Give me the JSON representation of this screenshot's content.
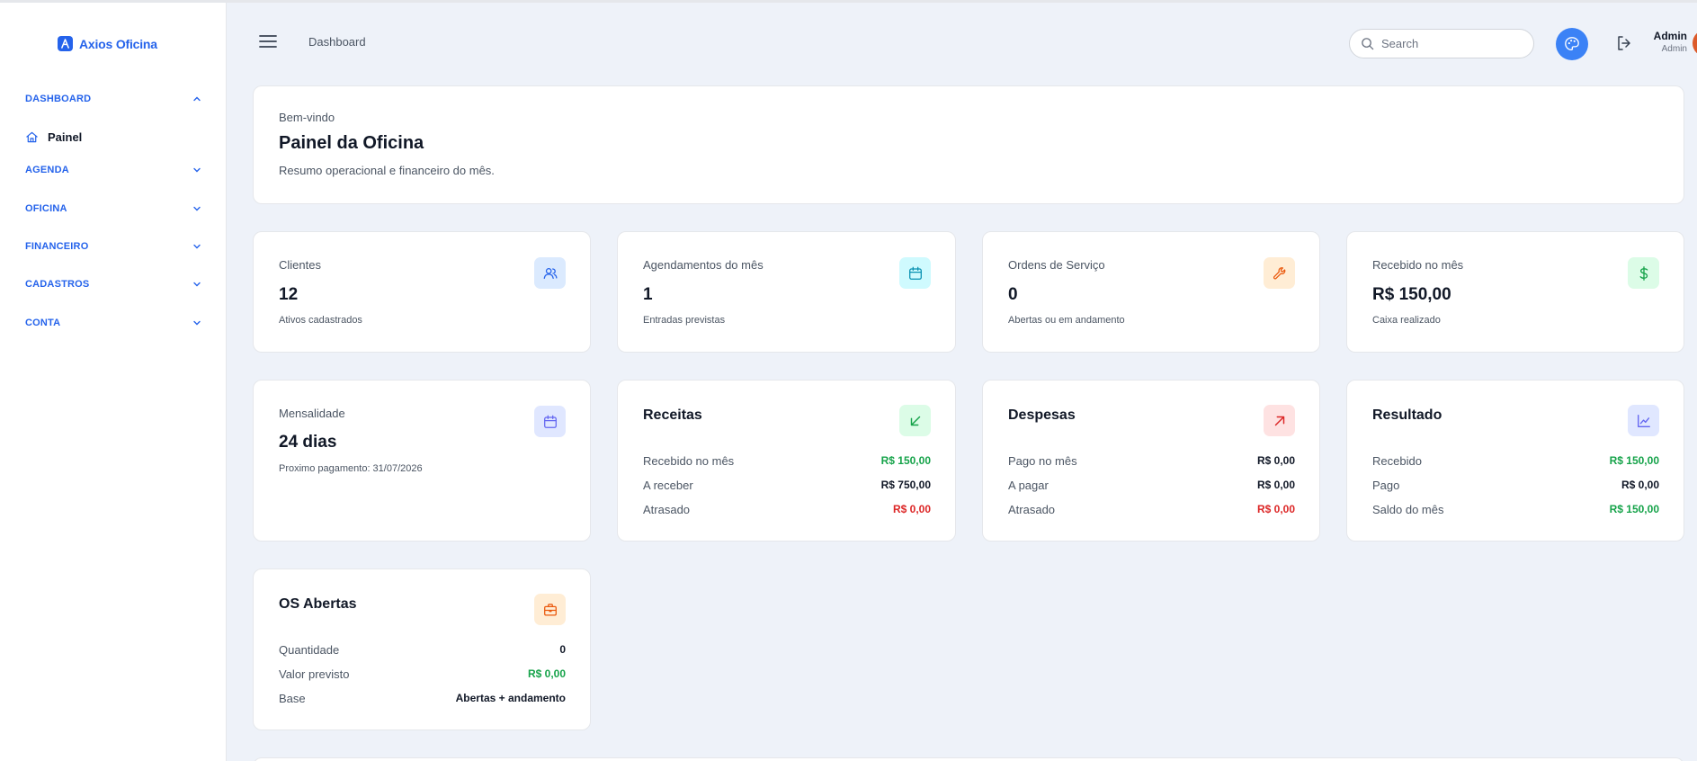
{
  "brand": {
    "name": "Axios Oficina",
    "accent": "#2563eb"
  },
  "sidebar": {
    "sections": [
      {
        "label": "DASHBOARD",
        "expanded": true
      },
      {
        "label": "AGENDA",
        "expanded": false
      },
      {
        "label": "OFICINA",
        "expanded": false
      },
      {
        "label": "FINANCEIRO",
        "expanded": false
      },
      {
        "label": "CADASTROS",
        "expanded": false
      },
      {
        "label": "CONTA",
        "expanded": false
      }
    ],
    "active_item": {
      "label": "Painel",
      "icon": "home-icon"
    }
  },
  "header": {
    "breadcrumb": "Dashboard",
    "search_placeholder": "Search",
    "user_name": "Admin",
    "user_role": "Admin"
  },
  "welcome": {
    "eyebrow": "Bem-vindo",
    "title": "Painel da Oficina",
    "description": "Resumo operacional e financeiro do mês."
  },
  "stats": [
    {
      "label": "Clientes",
      "value": "12",
      "sub": "Ativos cadastrados",
      "icon": "users-icon",
      "color": "#2563eb",
      "bg": "#dbeafe"
    },
    {
      "label": "Agendamentos do mês",
      "value": "1",
      "sub": "Entradas previstas",
      "icon": "calendar-icon",
      "color": "#0891b2",
      "bg": "#cffafe"
    },
    {
      "label": "Ordens de Serviço",
      "value": "0",
      "sub": "Abertas ou em andamento",
      "icon": "wrench-icon",
      "color": "#ea580c",
      "bg": "#ffedd5"
    },
    {
      "label": "Recebido no mês",
      "value": "R$ 150,00",
      "sub": "Caixa realizado",
      "icon": "dollar-icon",
      "color": "#16a34a",
      "bg": "#dcfce7"
    }
  ],
  "mensalidade": {
    "label": "Mensalidade",
    "value": "24 dias",
    "sub": "Proximo pagamento: 31/07/2026",
    "icon": "calendar-icon"
  },
  "receitas": {
    "title": "Receitas",
    "icon": "arrow-down-left-icon",
    "rows": [
      {
        "k": "Recebido no mês",
        "v": "R$ 150,00",
        "tone": "green"
      },
      {
        "k": "A receber",
        "v": "R$ 750,00",
        "tone": "dark"
      },
      {
        "k": "Atrasado",
        "v": "R$ 0,00",
        "tone": "red"
      }
    ]
  },
  "despesas": {
    "title": "Despesas",
    "icon": "arrow-up-right-icon",
    "rows": [
      {
        "k": "Pago no mês",
        "v": "R$ 0,00",
        "tone": "dark"
      },
      {
        "k": "A pagar",
        "v": "R$ 0,00",
        "tone": "dark"
      },
      {
        "k": "Atrasado",
        "v": "R$ 0,00",
        "tone": "red"
      }
    ]
  },
  "resultado": {
    "title": "Resultado",
    "icon": "chart-line-icon",
    "rows": [
      {
        "k": "Recebido",
        "v": "R$ 150,00",
        "tone": "green"
      },
      {
        "k": "Pago",
        "v": "R$ 0,00",
        "tone": "dark"
      },
      {
        "k": "Saldo do mês",
        "v": "R$ 150,00",
        "tone": "green"
      }
    ]
  },
  "os_abertas": {
    "title": "OS Abertas",
    "icon": "briefcase-icon",
    "rows": [
      {
        "k": "Quantidade",
        "v": "0",
        "tone": "dark"
      },
      {
        "k": "Valor previsto",
        "v": "R$ 0,00",
        "tone": "green"
      },
      {
        "k": "Base",
        "v": "Abertas + andamento",
        "tone": "dark"
      }
    ]
  }
}
